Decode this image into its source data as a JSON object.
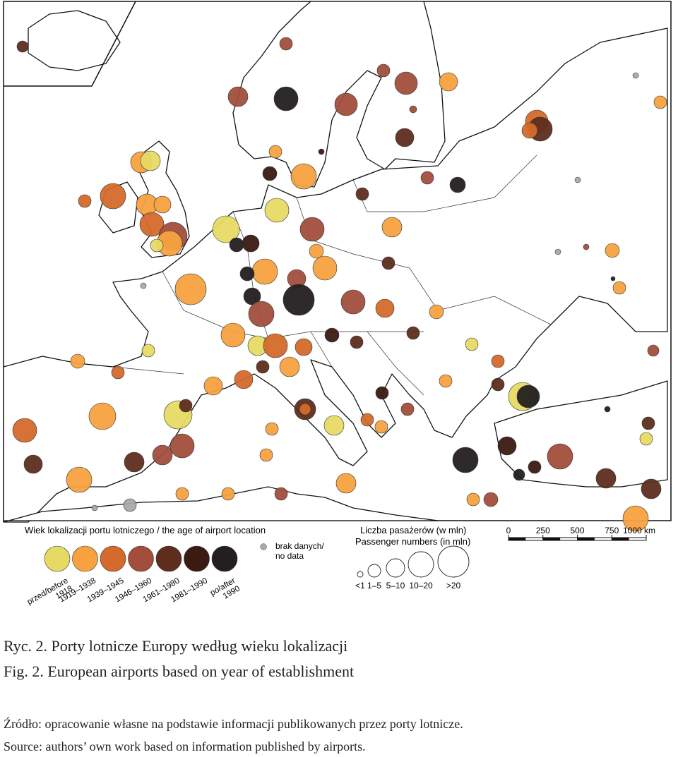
{
  "map": {
    "legend_age": {
      "title": "Wiek lokalizacji portu lotniczego / the age of airport location",
      "classes": [
        {
          "label": [
            "przed/before",
            "1918"
          ],
          "color": "#e6da64"
        },
        {
          "label": [
            "1919–1938"
          ],
          "color": "#f7a23f"
        },
        {
          "label": [
            "1939–1945"
          ],
          "color": "#d46a2b"
        },
        {
          "label": [
            "1946–1960"
          ],
          "color": "#a24e3b"
        },
        {
          "label": [
            "1961–1980"
          ],
          "color": "#5e2d1e"
        },
        {
          "label": [
            "1981–1990"
          ],
          "color": "#3b1a12"
        },
        {
          "label": [
            "po/after",
            "1990"
          ],
          "color": "#231f20"
        }
      ],
      "no_data": {
        "label": [
          "brak danych/",
          "no data"
        ],
        "color": "#a9a9a9"
      }
    },
    "legend_passengers": {
      "title": [
        "Liczba pasażerów (w mln)",
        "Passenger numbers (in mln)"
      ],
      "classes": [
        "<1",
        "1–5",
        "5–10",
        "10–20",
        ">20"
      ]
    },
    "scale_bar": {
      "ticks": [
        0,
        250,
        500,
        750,
        {
          "value": 1000,
          "label": "1000 km"
        }
      ]
    }
  },
  "caption": [
    "Ryc. 2. Porty lotnicze Europy według wieku lokalizacji",
    "Fig. 2. European airports based on year of establishment"
  ],
  "source": [
    "Źródło: opracowanie własne na podstawie informacji publikowanych przez porty lotnicze.",
    "Source: authors’ own work based on information published by airports."
  ]
}
